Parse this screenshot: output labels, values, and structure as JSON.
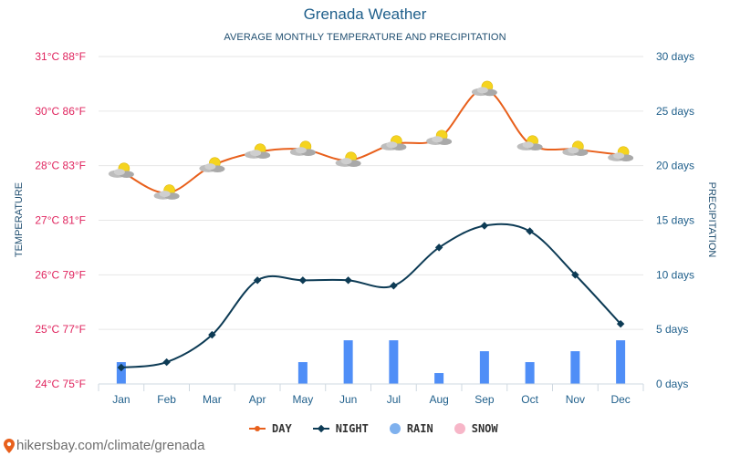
{
  "header": {
    "title": "Grenada Weather",
    "subtitle": "AVERAGE MONTHLY TEMPERATURE AND PRECIPITATION"
  },
  "footer": {
    "source": "hikersbay.com/climate/grenada"
  },
  "legend": {
    "day": "DAY",
    "night": "NIGHT",
    "rain": "RAIN",
    "snow": "SNOW"
  },
  "colors": {
    "day": "#e8601c",
    "night": "#0d3b55",
    "rain": "#4f8ef7",
    "snow": "#f7b6c8",
    "left_axis": "#e0245e",
    "right_axis": "#1f5f8b",
    "grid": "#e6e6e6"
  },
  "chart_data": {
    "type": "line",
    "title": "Grenada Weather",
    "subtitle": "AVERAGE MONTHLY TEMPERATURE AND PRECIPITATION",
    "categories": [
      "Jan",
      "Feb",
      "Mar",
      "Apr",
      "May",
      "Jun",
      "Jul",
      "Aug",
      "Sep",
      "Oct",
      "Nov",
      "Dec"
    ],
    "ylabel": "TEMPERATURE",
    "y2label": "PRECIPITATION",
    "ylim": [
      24,
      31
    ],
    "y2lim": [
      0,
      30
    ],
    "yticks": [
      "24°C 75°F",
      "25°C 77°F",
      "26°C 79°F",
      "27°C 81°F",
      "28°C 83°F",
      "30°C 86°F",
      "31°C 88°F"
    ],
    "y2ticks": [
      "0 days",
      "5 days",
      "10 days",
      "15 days",
      "20 days",
      "25 days",
      "30 days"
    ],
    "grid": true,
    "legend_position": "bottom",
    "series": [
      {
        "name": "DAY",
        "type": "line",
        "axis": "left",
        "values": [
          27.9,
          27.5,
          28.0,
          28.5,
          28.6,
          28.2,
          28.8,
          29.0,
          30.4,
          28.8,
          28.6,
          28.4
        ]
      },
      {
        "name": "NIGHT",
        "type": "line",
        "axis": "left",
        "values": [
          24.3,
          24.4,
          24.9,
          25.9,
          25.9,
          25.9,
          25.8,
          26.5,
          26.9,
          26.8,
          26.0,
          25.1
        ]
      },
      {
        "name": "RAIN",
        "type": "bar",
        "axis": "right",
        "values": [
          2,
          0,
          0,
          0,
          2,
          4,
          4,
          1,
          3,
          2,
          3,
          4
        ]
      },
      {
        "name": "SNOW",
        "type": "bar",
        "axis": "right",
        "values": [
          0,
          0,
          0,
          0,
          0,
          0,
          0,
          0,
          0,
          0,
          0,
          0
        ]
      }
    ]
  }
}
